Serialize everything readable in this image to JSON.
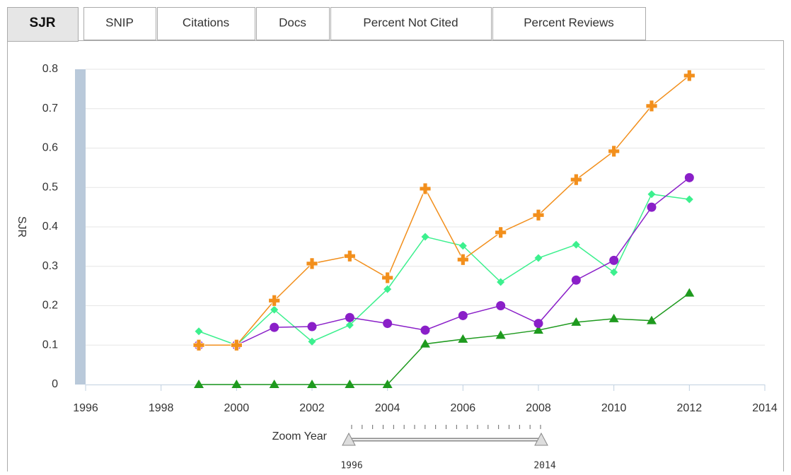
{
  "tabs": [
    "SJR",
    "SNIP",
    "Citations",
    "Docs",
    "Percent Not Cited",
    "Percent Reviews"
  ],
  "chart_data": {
    "type": "line",
    "y_label": "SJR",
    "x": [
      1999,
      2000,
      2001,
      2002,
      2003,
      2004,
      2005,
      2006,
      2007,
      2008,
      2009,
      2010,
      2011,
      2012
    ],
    "xlim": [
      1996,
      2014
    ],
    "xticks": [
      1996,
      1998,
      2000,
      2002,
      2004,
      2006,
      2008,
      2010,
      2012,
      2014
    ],
    "ylim": [
      0,
      0.8
    ],
    "yticks": [
      0,
      0.1,
      0.2,
      0.3,
      0.4,
      0.5,
      0.6,
      0.7,
      0.8
    ],
    "grid": true,
    "series": [
      {
        "color": "#1e9a1e",
        "marker": "triangle",
        "values": [
          0,
          0,
          0,
          0,
          0,
          0,
          0.103,
          0.115,
          0.125,
          0.138,
          0.158,
          0.167,
          0.162,
          0.232
        ]
      },
      {
        "color": "#3cf08e",
        "marker": "diamond",
        "values": [
          0.135,
          0.1,
          0.19,
          0.109,
          0.151,
          0.242,
          0.375,
          0.352,
          0.26,
          0.321,
          0.355,
          0.285,
          0.483,
          0.47
        ]
      },
      {
        "color": "#8a1fc8",
        "marker": "circle",
        "values": [
          0.1,
          0.1,
          0.145,
          0.147,
          0.17,
          0.155,
          0.138,
          0.175,
          0.2,
          0.155,
          0.265,
          0.315,
          0.45,
          0.525
        ]
      },
      {
        "color": "#f28f1c",
        "marker": "plus",
        "values": [
          0.1,
          0.1,
          0.213,
          0.307,
          0.326,
          0.271,
          0.497,
          0.317,
          0.386,
          0.43,
          0.52,
          0.592,
          0.707,
          0.784
        ]
      }
    ]
  },
  "zoom": {
    "label": "Zoom Year",
    "min": 1996,
    "max": 2014
  }
}
